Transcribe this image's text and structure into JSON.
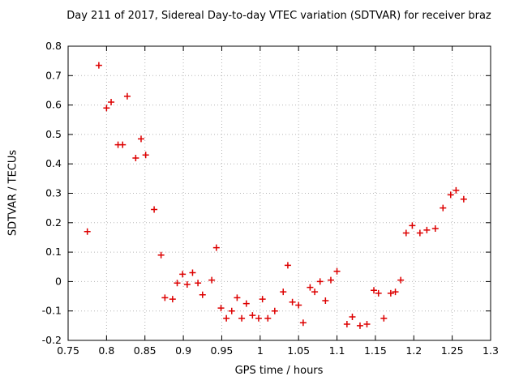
{
  "chart_data": {
    "type": "scatter",
    "title": "Day 211 of 2017, Sidereal Day-to-day VTEC variation (SDTVAR) for receiver braz",
    "xlabel": "GPS time / hours",
    "ylabel": "SDTVAR / TECUs",
    "xlim": [
      0.75,
      1.3
    ],
    "ylim": [
      -0.2,
      0.8
    ],
    "xticks": [
      0.75,
      0.8,
      0.85,
      0.9,
      0.95,
      1,
      1.05,
      1.1,
      1.15,
      1.2,
      1.25,
      1.3
    ],
    "yticks": [
      -0.2,
      -0.1,
      0,
      0.1,
      0.2,
      0.3,
      0.4,
      0.5,
      0.6,
      0.7,
      0.8
    ],
    "grid": true,
    "legend": "none",
    "marker": "plus",
    "marker_color": "#dd0000",
    "grid_color": "#b5b5b5",
    "border_color": "#000000",
    "points": [
      [
        0.775,
        0.17
      ],
      [
        0.79,
        0.735
      ],
      [
        0.8,
        0.59
      ],
      [
        0.806,
        0.61
      ],
      [
        0.815,
        0.465
      ],
      [
        0.821,
        0.465
      ],
      [
        0.827,
        0.63
      ],
      [
        0.838,
        0.42
      ],
      [
        0.845,
        0.485
      ],
      [
        0.851,
        0.43
      ],
      [
        0.862,
        0.245
      ],
      [
        0.871,
        0.09
      ],
      [
        0.876,
        -0.055
      ],
      [
        0.886,
        -0.06
      ],
      [
        0.892,
        -0.005
      ],
      [
        0.899,
        0.025
      ],
      [
        0.905,
        -0.01
      ],
      [
        0.912,
        0.03
      ],
      [
        0.919,
        -0.005
      ],
      [
        0.925,
        -0.045
      ],
      [
        0.937,
        0.005
      ],
      [
        0.943,
        0.115
      ],
      [
        0.949,
        -0.09
      ],
      [
        0.956,
        -0.125
      ],
      [
        0.963,
        -0.1
      ],
      [
        0.97,
        -0.055
      ],
      [
        0.976,
        -0.125
      ],
      [
        0.982,
        -0.075
      ],
      [
        0.99,
        -0.115
      ],
      [
        0.998,
        -0.125
      ],
      [
        1.003,
        -0.06
      ],
      [
        1.01,
        -0.125
      ],
      [
        1.019,
        -0.1
      ],
      [
        1.03,
        -0.035
      ],
      [
        1.036,
        0.055
      ],
      [
        1.042,
        -0.07
      ],
      [
        1.05,
        -0.08
      ],
      [
        1.056,
        -0.14
      ],
      [
        1.065,
        -0.02
      ],
      [
        1.071,
        -0.035
      ],
      [
        1.078,
        0.0
      ],
      [
        1.085,
        -0.065
      ],
      [
        1.092,
        0.005
      ],
      [
        1.1,
        0.035
      ],
      [
        1.113,
        -0.145
      ],
      [
        1.12,
        -0.12
      ],
      [
        1.13,
        -0.15
      ],
      [
        1.139,
        -0.145
      ],
      [
        1.148,
        -0.03
      ],
      [
        1.154,
        -0.04
      ],
      [
        1.161,
        -0.125
      ],
      [
        1.17,
        -0.04
      ],
      [
        1.176,
        -0.035
      ],
      [
        1.183,
        0.005
      ],
      [
        1.19,
        0.165
      ],
      [
        1.198,
        0.19
      ],
      [
        1.208,
        0.165
      ],
      [
        1.217,
        0.175
      ],
      [
        1.228,
        0.18
      ],
      [
        1.238,
        0.25
      ],
      [
        1.248,
        0.295
      ],
      [
        1.255,
        0.31
      ],
      [
        1.265,
        0.28
      ]
    ]
  }
}
